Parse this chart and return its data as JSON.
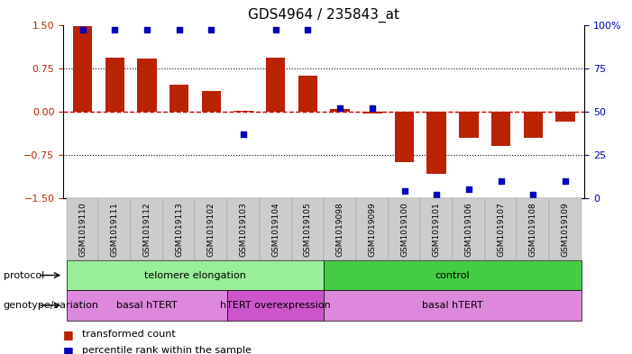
{
  "title": "GDS4964 / 235843_at",
  "samples": [
    "GSM1019110",
    "GSM1019111",
    "GSM1019112",
    "GSM1019113",
    "GSM1019102",
    "GSM1019103",
    "GSM1019104",
    "GSM1019105",
    "GSM1019098",
    "GSM1019099",
    "GSM1019100",
    "GSM1019101",
    "GSM1019106",
    "GSM1019107",
    "GSM1019108",
    "GSM1019109"
  ],
  "bar_values": [
    1.47,
    0.93,
    0.92,
    0.47,
    0.35,
    0.01,
    0.93,
    0.62,
    0.05,
    -0.04,
    -0.87,
    -1.08,
    -0.45,
    -0.6,
    -0.45,
    -0.18
  ],
  "dot_pct": [
    97,
    97,
    97,
    97,
    97,
    37,
    97,
    97,
    52,
    52,
    4,
    2,
    5,
    10,
    2,
    10
  ],
  "ylim": [
    -1.5,
    1.5
  ],
  "yticks_left": [
    -1.5,
    -0.75,
    0,
    0.75,
    1.5
  ],
  "yticks_right_pct": [
    0,
    25,
    50,
    75,
    100
  ],
  "bar_color": "#bb2200",
  "dot_color": "#0000bb",
  "zero_line_color": "#cc0000",
  "hline_color": "#000000",
  "protocol_telo_color": "#99ee99",
  "protocol_ctrl_color": "#44cc44",
  "geno_basal_color": "#dd88dd",
  "geno_htert_color": "#cc55cc",
  "tick_bg": "#cccccc",
  "bg_color": "#ffffff",
  "protocol_label": "protocol",
  "genotype_label": "genotype/variation",
  "telo_label": "telomere elongation",
  "ctrl_label": "control",
  "basal1_label": "basal hTERT",
  "htert_label": "hTERT overexpression",
  "basal2_label": "basal hTERT",
  "telo_range": [
    0,
    7
  ],
  "ctrl_range": [
    8,
    15
  ],
  "basal1_range": [
    0,
    4
  ],
  "htert_range": [
    5,
    7
  ],
  "basal2_range": [
    8,
    15
  ],
  "legend_bar": "transformed count",
  "legend_dot": "percentile rank within the sample"
}
